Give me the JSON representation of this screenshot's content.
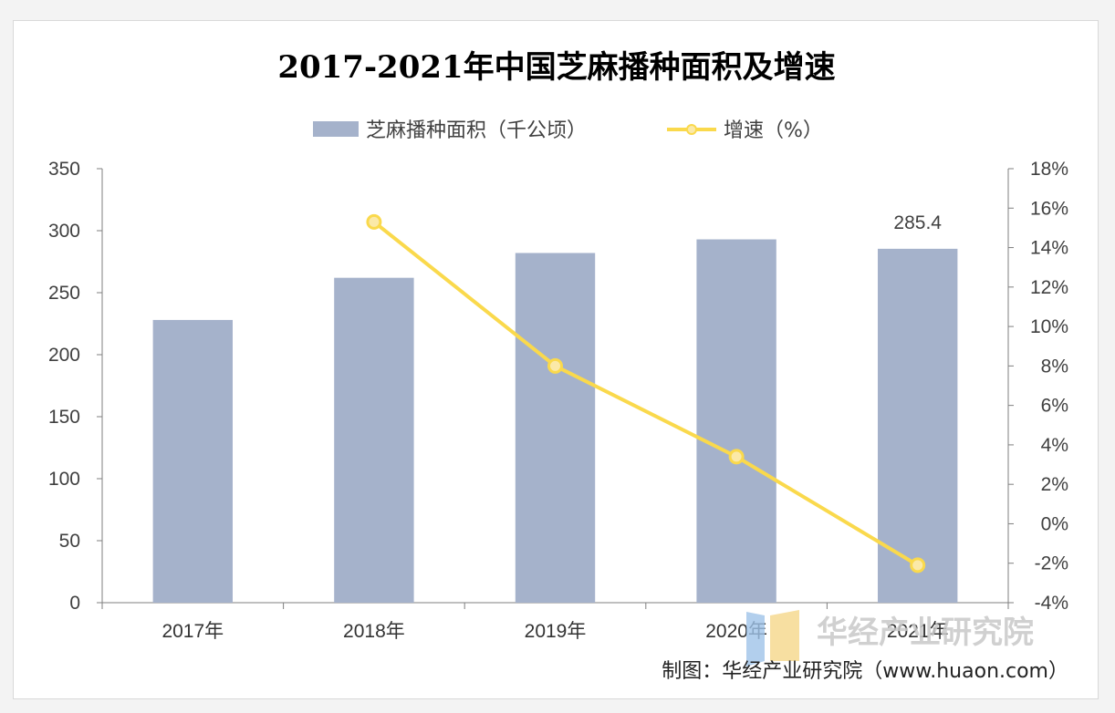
{
  "chart_data": {
    "type": "bar",
    "title": "2017-2021年中国芝麻播种面积及增速",
    "categories": [
      "2017年",
      "2018年",
      "2019年",
      "2020年",
      "2021年"
    ],
    "series": [
      {
        "name": "芝麻播种面积（千公顷）",
        "type": "bar",
        "axis": "left",
        "values": [
          228,
          262,
          282,
          293,
          285.4
        ],
        "data_labels": [
          null,
          null,
          null,
          null,
          "285.4"
        ]
      },
      {
        "name": "增速（%）",
        "type": "line",
        "axis": "right",
        "values": [
          null,
          15.3,
          8.0,
          3.4,
          -2.1
        ]
      }
    ],
    "left_axis": {
      "min": 0,
      "max": 350,
      "ticks": [
        "0",
        "50",
        "100",
        "150",
        "200",
        "250",
        "300",
        "350"
      ]
    },
    "right_axis": {
      "min": -4,
      "max": 18,
      "ticks": [
        "-4%",
        "-2%",
        "0%",
        "2%",
        "4%",
        "6%",
        "8%",
        "10%",
        "12%",
        "14%",
        "16%",
        "18%"
      ]
    },
    "legend_position": "top",
    "grid": false,
    "colors": {
      "bar": "#a5b2cb",
      "line": "#fad94c",
      "marker": "#fbe9a8"
    }
  },
  "footer": {
    "source": "制图：华经产业研究院（www.huaon.com）",
    "watermark": "华经产业研究院"
  }
}
